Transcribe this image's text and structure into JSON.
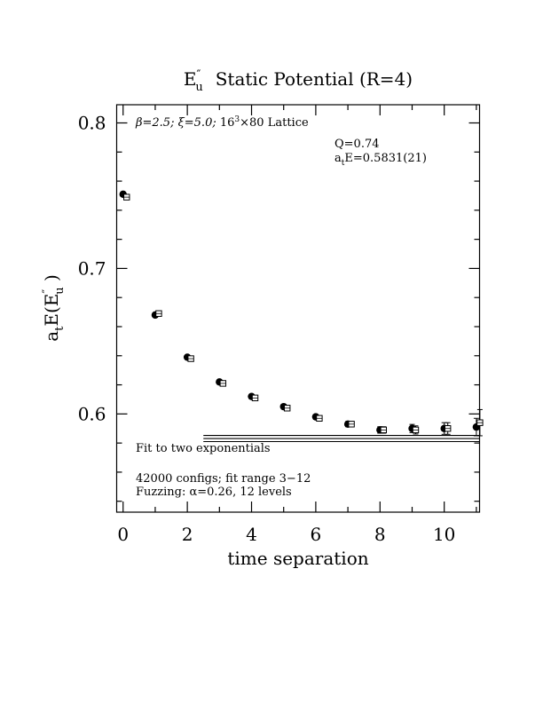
{
  "chart_data": {
    "type": "scatter",
    "title": {
      "main": "E",
      "sup": "″",
      "sub": "u",
      "rest": "Static Potential (R=4)"
    },
    "xlabel": "time separation",
    "ylabel": {
      "pre": "a",
      "pre_sub": "t",
      "mid": "E(E",
      "sup": "″",
      "sub": "u",
      "post": " )"
    },
    "xlim": [
      -0.2,
      11.1
    ],
    "ylim": [
      0.5325,
      0.8125
    ],
    "x_ticks": [
      0,
      2,
      4,
      6,
      8,
      10
    ],
    "x_tick_labels": [
      "0",
      "2",
      "4",
      "6",
      "8",
      "10"
    ],
    "y_ticks": [
      0.6,
      0.7,
      0.8
    ],
    "y_tick_labels": [
      "0.6",
      "0.7",
      "0.8"
    ],
    "x_minor_step": 1,
    "y_minor_step": 0.02,
    "grid": false,
    "annotations": {
      "lattice": {
        "beta": "β=2.5; ",
        "xi": "ξ=5.0; ",
        "size": "16",
        "size_sup": "3",
        "rest": "×80 Lattice"
      },
      "q": "Q=0.74",
      "energy": {
        "pre": "a",
        "sub": "t",
        "rest": "E=0.5831(21)"
      },
      "fit_label": "Fit to two exponentials",
      "configs": "42000 configs; fit range 3−12",
      "fuzzing": "Fuzzing: α=0.26, 12 levels"
    },
    "series": [
      {
        "marker": "filled-circle",
        "x": [
          0,
          1,
          2,
          3,
          4,
          5,
          6,
          7,
          8,
          9,
          10,
          11
        ],
        "y": [
          0.751,
          0.668,
          0.639,
          0.622,
          0.612,
          0.605,
          0.598,
          0.593,
          0.589,
          0.59,
          0.59,
          0.591
        ],
        "err": [
          0.0008,
          0.0008,
          0.0008,
          0.001,
          0.001,
          0.0012,
          0.0015,
          0.0018,
          0.0022,
          0.0028,
          0.004,
          0.006
        ]
      },
      {
        "marker": "open-square",
        "x": [
          0,
          1,
          2,
          3,
          4,
          5,
          6,
          7,
          8,
          9,
          10,
          11
        ],
        "y": [
          0.749,
          0.669,
          0.638,
          0.621,
          0.611,
          0.604,
          0.597,
          0.593,
          0.589,
          0.589,
          0.59,
          0.594
        ],
        "err": [
          0.0008,
          0.0008,
          0.0008,
          0.001,
          0.001,
          0.0012,
          0.0015,
          0.0018,
          0.0022,
          0.0028,
          0.004,
          0.009
        ]
      }
    ],
    "fit": {
      "x_range": [
        2.5,
        11.1
      ],
      "center": 0.5831,
      "error": 0.0021
    }
  }
}
